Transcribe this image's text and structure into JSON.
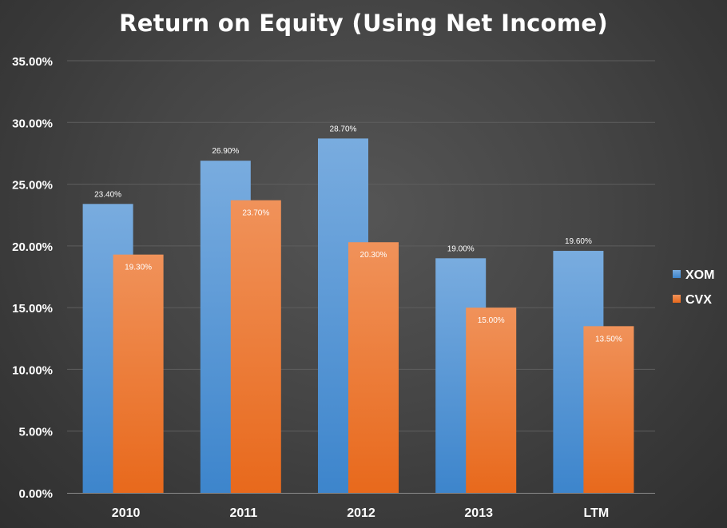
{
  "chart_data": {
    "type": "bar",
    "title": "Return on Equity (Using Net Income)",
    "xlabel": "",
    "ylabel": "",
    "categories": [
      "2010",
      "2011",
      "2012",
      "2013",
      "LTM"
    ],
    "series": [
      {
        "name": "XOM",
        "values": [
          23.4,
          26.9,
          28.7,
          19.0,
          19.6
        ],
        "labels": [
          "23.40%",
          "26.90%",
          "28.70%",
          "19.00%",
          "19.60%"
        ],
        "color": "#5b9bd5"
      },
      {
        "name": "CVX",
        "values": [
          19.3,
          23.7,
          20.3,
          15.0,
          13.5
        ],
        "labels": [
          "19.30%",
          "23.70%",
          "20.30%",
          "15.00%",
          "13.50%"
        ],
        "color": "#ed7d31"
      }
    ],
    "ylim": [
      0,
      35
    ],
    "yticks": [
      0,
      5,
      10,
      15,
      20,
      25,
      30,
      35
    ],
    "ytick_labels": [
      "0.00%",
      "5.00%",
      "10.00%",
      "15.00%",
      "20.00%",
      "25.00%",
      "30.00%",
      "35.00%"
    ],
    "grid": true,
    "legend_position": "right",
    "background_color": "#404040"
  }
}
